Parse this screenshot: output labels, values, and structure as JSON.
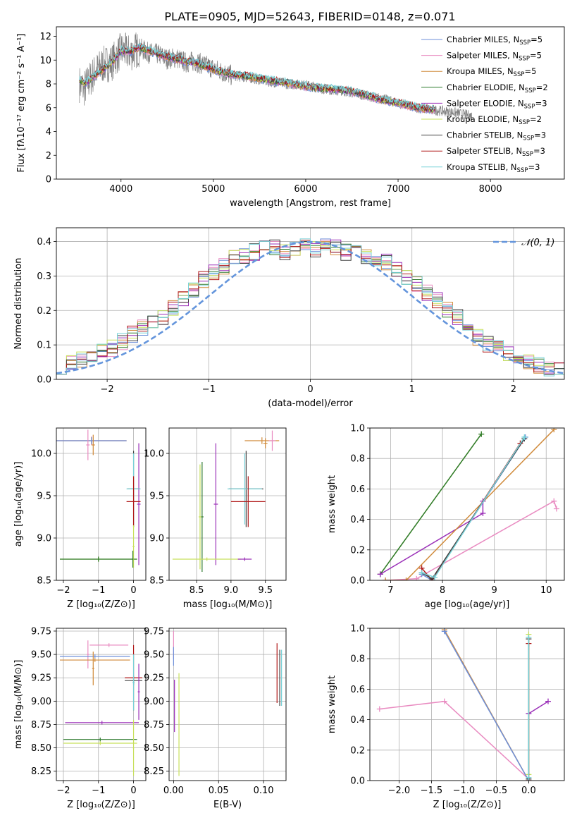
{
  "figure": {
    "title": "PLATE=0905, MJD=52643, FIBERID=0148, z=0.071"
  },
  "colors": {
    "Chabrier MILES": "#6c8fd9",
    "Salpeter MILES": "#e98bc1",
    "Kroupa MILES": "#d08a3a",
    "Chabrier ELODIE": "#2e7a2e",
    "Salpeter ELODIE": "#9b30b8",
    "Kroupa ELODIE": "#c8e05c",
    "Chabrier STELIB": "#404040",
    "Salpeter STELIB": "#b01818",
    "Kroupa STELIB": "#78d2d8",
    "data": "#808080",
    "normal": "#6495dc",
    "grid": "#b0b0b0"
  },
  "chart_data": [
    {
      "id": "spectrum",
      "type": "line",
      "xlabel": "wavelength [Angstrom, rest frame]",
      "ylabel": "Flux [fλ10⁻¹⁷ erg cm⁻² s⁻¹ A⁻¹]",
      "xlim": [
        3300,
        8800
      ],
      "ylim": [
        0,
        12.8
      ],
      "xticks": [
        4000,
        5000,
        6000,
        7000,
        8000
      ],
      "yticks": [
        0,
        2,
        4,
        6,
        8,
        10,
        12
      ],
      "grid": false,
      "legend_position": "top-right",
      "data_series": {
        "x": [
          3550,
          3600,
          3700,
          3800,
          3900,
          4000,
          4100,
          4200,
          4300,
          4400,
          4500,
          4600,
          4700,
          4800,
          4900,
          5000,
          5200,
          5400,
          5600,
          5800,
          6000,
          6200,
          6400,
          6600,
          6800,
          7000,
          7200,
          7400,
          7600,
          7800
        ],
        "y": [
          8.0,
          7.6,
          8.8,
          9.6,
          9.8,
          10.8,
          10.6,
          11.0,
          10.6,
          10.5,
          10.1,
          10.2,
          9.8,
          9.9,
          9.6,
          9.3,
          8.7,
          8.5,
          8.2,
          8.0,
          7.9,
          7.6,
          7.4,
          7.1,
          6.8,
          6.4,
          6.0,
          5.8,
          5.6,
          5.3
        ]
      },
      "model": {
        "x": [
          3550,
          3600,
          3700,
          3800,
          3900,
          4000,
          4100,
          4200,
          4300,
          4400,
          4500,
          4600,
          4700,
          4800,
          4900,
          5000,
          5200,
          5400,
          5600,
          5800,
          6000,
          6200,
          6400,
          6600,
          6800,
          7000,
          7200,
          7400
        ],
        "y": [
          8.4,
          8.0,
          8.6,
          9.2,
          9.8,
          10.8,
          10.7,
          11.1,
          10.8,
          10.5,
          10.3,
          10.1,
          9.9,
          9.8,
          9.5,
          9.2,
          8.8,
          8.6,
          8.3,
          8.1,
          7.8,
          7.6,
          7.5,
          7.2,
          6.7,
          6.4,
          6.0,
          5.8
        ]
      },
      "legend": [
        {
          "text": "Chabrier MILES, N",
          "sub": "SSP",
          "post": "=5",
          "color": "Chabrier MILES"
        },
        {
          "text": "Salpeter MILES, N",
          "sub": "SSP",
          "post": "=5",
          "color": "Salpeter MILES"
        },
        {
          "text": "Kroupa MILES, N",
          "sub": "SSP",
          "post": "=5",
          "color": "Kroupa MILES"
        },
        {
          "text": "Chabrier ELODIE, N",
          "sub": "SSP",
          "post": "=2",
          "color": "Chabrier ELODIE"
        },
        {
          "text": "Salpeter ELODIE, N",
          "sub": "SSP",
          "post": "=3",
          "color": "Salpeter ELODIE"
        },
        {
          "text": "Kroupa ELODIE, N",
          "sub": "SSP",
          "post": "=2",
          "color": "Kroupa ELODIE"
        },
        {
          "text": "Chabrier STELIB, N",
          "sub": "SSP",
          "post": "=3",
          "color": "Chabrier STELIB"
        },
        {
          "text": "Salpeter STELIB, N",
          "sub": "SSP",
          "post": "=3",
          "color": "Salpeter STELIB"
        },
        {
          "text": "Kroupa STELIB, N",
          "sub": "SSP",
          "post": "=3",
          "color": "Kroupa STELIB"
        }
      ]
    },
    {
      "id": "residuals",
      "type": "line",
      "xlabel": "(data-model)/error",
      "ylabel": "Normed distribution",
      "xlim": [
        -2.5,
        2.5
      ],
      "ylim": [
        0,
        0.44
      ],
      "xticks": [
        -2,
        -1,
        0,
        1,
        2
      ],
      "yticks": [
        0.0,
        0.1,
        0.2,
        0.3,
        0.4
      ],
      "grid": true,
      "legend_position": "top-right",
      "legend_text": "𝒩(0, 1)",
      "bin_edges_start": -2.5,
      "bin_width": 0.1,
      "hist_base": [
        0.04,
        0.05,
        0.06,
        0.07,
        0.08,
        0.09,
        0.11,
        0.13,
        0.15,
        0.16,
        0.18,
        0.21,
        0.23,
        0.26,
        0.29,
        0.31,
        0.33,
        0.35,
        0.36,
        0.37,
        0.38,
        0.38,
        0.37,
        0.38,
        0.39,
        0.38,
        0.39,
        0.38,
        0.37,
        0.37,
        0.36,
        0.35,
        0.34,
        0.32,
        0.3,
        0.28,
        0.25,
        0.23,
        0.2,
        0.18,
        0.15,
        0.12,
        0.1,
        0.09,
        0.07,
        0.06,
        0.05,
        0.04,
        0.03,
        0.03
      ]
    },
    {
      "id": "age-vs-z",
      "type": "scatter",
      "xlabel": "Z [log₁₀(Z/Z⊙)]",
      "ylabel": "age  [log₁₀(age/yr)]",
      "xlim": [
        -2.2,
        0.35
      ],
      "ylim": [
        8.5,
        10.3
      ],
      "xticks": [
        -2,
        -1,
        0
      ],
      "yticks": [
        8.5,
        9.0,
        9.5,
        10.0
      ],
      "grid": true,
      "points": [
        {
          "c": "Salpeter MILES",
          "x": -1.2,
          "y": 10.15,
          "ex": 1.0,
          "ey": 0.05
        },
        {
          "c": "Kroupa MILES",
          "x": -1.2,
          "y": 10.15,
          "ex": 1.0,
          "ey": 0.04
        },
        {
          "c": "Chabrier MILES",
          "x": -1.2,
          "y": 10.15,
          "ex": 1.0,
          "ey": 0.04
        },
        {
          "c": "Salpeter MILES",
          "x": -1.3,
          "y": 10.1,
          "ex": 0.05,
          "ey": 0.18
        },
        {
          "c": "Kroupa MILES",
          "x": -1.15,
          "y": 10.1,
          "ex": 0.05,
          "ey": 0.12
        },
        {
          "c": "Salpeter ELODIE",
          "x": 0.15,
          "y": 9.4,
          "ex": 0.05,
          "ey": 0.72
        },
        {
          "c": "Chabrier STELIB",
          "x": 0.0,
          "y": 9.58,
          "ex": 0.18,
          "ey": 0.45
        },
        {
          "c": "Kroupa STELIB",
          "x": 0.0,
          "y": 9.58,
          "ex": 0.2,
          "ey": 0.42
        },
        {
          "c": "Salpeter STELIB",
          "x": 0.0,
          "y": 9.43,
          "ex": 0.2,
          "ey": 0.3
        },
        {
          "c": "Kroupa ELODIE",
          "x": -1.0,
          "y": 8.75,
          "ex": 1.1,
          "ey": 0.03
        },
        {
          "c": "Chabrier ELODIE",
          "x": -1.0,
          "y": 8.75,
          "ex": 1.1,
          "ey": 0.03
        },
        {
          "c": "Kroupa ELODIE",
          "x": 0.0,
          "y": 8.9,
          "ex": 0.03,
          "ey": 0.25
        },
        {
          "c": "Chabrier ELODIE",
          "x": -0.02,
          "y": 8.75,
          "ex": 0.02,
          "ey": 0.1
        }
      ]
    },
    {
      "id": "age-vs-mass",
      "type": "scatter",
      "xlabel": "mass [log₁₀(M/M⊙)]",
      "ylabel": "",
      "xlim": [
        8.1,
        9.8
      ],
      "ylim": [
        8.5,
        10.3
      ],
      "xticks": [
        8.5,
        9.0,
        9.5
      ],
      "yticks": [
        8.5,
        9.0,
        9.5,
        10.0
      ],
      "grid": true,
      "points": [
        {
          "c": "Kroupa MILES",
          "x": 9.45,
          "y": 10.15,
          "ex": 0.25,
          "ey": 0.04
        },
        {
          "c": "Salpeter MILES",
          "x": 9.6,
          "y": 10.15,
          "ex": 0.05,
          "ey": 0.12
        },
        {
          "c": "Kroupa MILES",
          "x": 9.5,
          "y": 10.12,
          "ex": 0.03,
          "ey": 0.06
        },
        {
          "c": "Salpeter ELODIE",
          "x": 8.78,
          "y": 9.4,
          "ex": 0.03,
          "ey": 0.72
        },
        {
          "c": "Chabrier STELIB",
          "x": 9.22,
          "y": 9.58,
          "ex": 0.25,
          "ey": 0.45
        },
        {
          "c": "Kroupa STELIB",
          "x": 9.2,
          "y": 9.58,
          "ex": 0.25,
          "ey": 0.42
        },
        {
          "c": "Salpeter STELIB",
          "x": 9.25,
          "y": 9.43,
          "ex": 0.25,
          "ey": 0.3
        },
        {
          "c": "Chabrier ELODIE",
          "x": 8.58,
          "y": 9.25,
          "ex": 0.02,
          "ey": 0.65
        },
        {
          "c": "Kroupa ELODIE",
          "x": 8.55,
          "y": 9.25,
          "ex": 0.02,
          "ey": 0.62
        },
        {
          "c": "Kroupa ELODIE",
          "x": 8.65,
          "y": 8.75,
          "ex": 0.5,
          "ey": 0.02
        },
        {
          "c": "Salpeter ELODIE",
          "x": 9.2,
          "y": 8.75,
          "ex": 0.1,
          "ey": 0.02
        }
      ]
    },
    {
      "id": "weight-vs-age",
      "type": "line",
      "xlabel": "age  [log₁₀(age/yr)]",
      "ylabel": "mass weight",
      "xlim": [
        6.6,
        10.35
      ],
      "ylim": [
        0,
        1
      ],
      "xticks": [
        7,
        8,
        9,
        10
      ],
      "yticks": [
        0.0,
        0.2,
        0.4,
        0.6,
        0.8,
        1.0
      ],
      "grid": true,
      "lines": [
        {
          "c": "Kroupa ELODIE",
          "x": [
            6.8,
            8.75
          ],
          "y": [
            0.04,
            0.96
          ]
        },
        {
          "c": "Chabrier ELODIE",
          "x": [
            6.8,
            8.75
          ],
          "y": [
            0.04,
            0.96
          ]
        },
        {
          "c": "Salpeter ELODIE",
          "x": [
            6.8,
            8.78,
            8.78
          ],
          "y": [
            0.04,
            0.44,
            0.52
          ]
        },
        {
          "c": "Salpeter MILES",
          "x": [
            6.9,
            7.5,
            10.15,
            10.2
          ],
          "y": [
            0.0,
            0.01,
            0.52,
            0.47
          ]
        },
        {
          "c": "Kroupa MILES",
          "x": [
            6.9,
            7.3,
            10.15
          ],
          "y": [
            0.0,
            0.0,
            0.99
          ]
        },
        {
          "c": "Chabrier MILES",
          "x": [
            7.6,
            7.8,
            9.6
          ],
          "y": [
            0.04,
            0.0,
            0.94
          ]
        },
        {
          "c": "Salpeter STELIB",
          "x": [
            7.6,
            7.8,
            9.5
          ],
          "y": [
            0.08,
            0.0,
            0.9
          ]
        },
        {
          "c": "Chabrier STELIB",
          "x": [
            7.6,
            7.8,
            9.58
          ],
          "y": [
            0.05,
            0.01,
            0.93
          ]
        },
        {
          "c": "Kroupa STELIB",
          "x": [
            7.6,
            7.85,
            9.58
          ],
          "y": [
            0.05,
            0.02,
            0.94
          ]
        }
      ]
    },
    {
      "id": "mass-vs-z",
      "type": "scatter",
      "xlabel": "Z [log₁₀(Z/Z⊙)]",
      "ylabel": "mass [log₁₀(M/M⊙)]",
      "xlim": [
        -2.2,
        0.35
      ],
      "ylim": [
        8.15,
        9.78
      ],
      "xticks": [
        -2,
        -1,
        0
      ],
      "yticks": [
        8.25,
        8.5,
        8.75,
        9.0,
        9.25,
        9.5,
        9.75
      ],
      "grid": true,
      "points": [
        {
          "c": "Salpeter MILES",
          "x": -0.7,
          "y": 9.6,
          "ex": 0.55,
          "ey": 0.02
        },
        {
          "c": "Salpeter MILES",
          "x": -1.3,
          "y": 9.5,
          "ex": 0.03,
          "ey": 0.15
        },
        {
          "c": "Chabrier MILES",
          "x": -1.1,
          "y": 9.48,
          "ex": 1.0,
          "ey": 0.02
        },
        {
          "c": "Kroupa MILES",
          "x": -1.1,
          "y": 9.44,
          "ex": 1.0,
          "ey": 0.02
        },
        {
          "c": "Kroupa MILES",
          "x": -1.15,
          "y": 9.35,
          "ex": 0.03,
          "ey": 0.18
        },
        {
          "c": "Salpeter STELIB",
          "x": 0.0,
          "y": 9.25,
          "ex": 0.25,
          "ey": 0.35
        },
        {
          "c": "Chabrier STELIB",
          "x": 0.0,
          "y": 9.22,
          "ex": 0.25,
          "ey": 0.05
        },
        {
          "c": "Kroupa STELIB",
          "x": 0.0,
          "y": 9.2,
          "ex": 0.03,
          "ey": 0.3
        },
        {
          "c": "Salpeter ELODIE",
          "x": 0.15,
          "y": 9.1,
          "ex": 0.03,
          "ey": 0.3
        },
        {
          "c": "Salpeter ELODIE",
          "x": -0.9,
          "y": 8.77,
          "ex": 1.05,
          "ey": 0.02
        },
        {
          "c": "Chabrier ELODIE",
          "x": -0.95,
          "y": 8.59,
          "ex": 1.05,
          "ey": 0.02
        },
        {
          "c": "Kroupa ELODIE",
          "x": -0.95,
          "y": 8.55,
          "ex": 1.05,
          "ey": 0.02
        },
        {
          "c": "Kroupa ELODIE",
          "x": 0.0,
          "y": 8.5,
          "ex": 0.02,
          "ey": 0.3
        }
      ]
    },
    {
      "id": "mass-vs-ebv",
      "type": "scatter",
      "xlabel": "E(B-V)",
      "ylabel": "",
      "xlim": [
        -0.005,
        0.125
      ],
      "ylim": [
        8.15,
        9.78
      ],
      "xticks": [
        0.0,
        0.05,
        0.1
      ],
      "yticks": [
        8.25,
        8.5,
        8.75,
        9.0,
        9.25,
        9.5,
        9.75
      ],
      "grid": true,
      "points": [
        {
          "c": "Salpeter MILES",
          "x": 0.0,
          "y": 9.6,
          "ex": 0.0,
          "ey": 0.15
        },
        {
          "c": "Chabrier MILES",
          "x": 0.0,
          "y": 9.48,
          "ex": 0.0,
          "ey": 0.1
        },
        {
          "c": "Salpeter ELODIE",
          "x": 0.001,
          "y": 8.95,
          "ex": 0.0,
          "ey": 0.28
        },
        {
          "c": "Kroupa ELODIE",
          "x": 0.006,
          "y": 8.75,
          "ex": 0.0,
          "ey": 0.55
        },
        {
          "c": "Salpeter STELIB",
          "x": 0.115,
          "y": 9.3,
          "ex": 0.0,
          "ey": 0.32
        },
        {
          "c": "Chabrier STELIB",
          "x": 0.118,
          "y": 9.25,
          "ex": 0.0,
          "ey": 0.3
        },
        {
          "c": "Kroupa STELIB",
          "x": 0.12,
          "y": 9.25,
          "ex": 0.0,
          "ey": 0.3
        }
      ]
    },
    {
      "id": "weight-vs-z",
      "type": "line",
      "xlabel": "Z [log₁₀(Z/Z⊙)]",
      "ylabel": "mass weight",
      "xlim": [
        -2.45,
        0.55
      ],
      "ylim": [
        0,
        1
      ],
      "xticks": [
        -2.0,
        -1.5,
        -1.0,
        -0.5,
        0.0
      ],
      "yticks": [
        0.0,
        0.2,
        0.4,
        0.6,
        0.8,
        1.0
      ],
      "grid": true,
      "lines": [
        {
          "c": "Salpeter MILES",
          "x": [
            -2.3,
            -1.3,
            0.0
          ],
          "y": [
            0.47,
            0.52,
            0.01
          ]
        },
        {
          "c": "Kroupa MILES",
          "x": [
            -1.3,
            0.0
          ],
          "y": [
            0.99,
            0.0
          ]
        },
        {
          "c": "Chabrier MILES",
          "x": [
            -1.3,
            0.0
          ],
          "y": [
            0.98,
            0.0
          ]
        },
        {
          "c": "Salpeter ELODIE",
          "x": [
            0.0,
            0.3
          ],
          "y": [
            0.44,
            0.52
          ]
        },
        {
          "c": "Kroupa ELODIE",
          "x": [
            0.0,
            0.0
          ],
          "y": [
            0.04,
            0.96
          ]
        },
        {
          "c": "Salpeter STELIB",
          "x": [
            0.0,
            0.0
          ],
          "y": [
            0.0,
            0.9
          ]
        },
        {
          "c": "Chabrier STELIB",
          "x": [
            0.0,
            0.0
          ],
          "y": [
            0.01,
            0.93
          ]
        },
        {
          "c": "Kroupa STELIB",
          "x": [
            0.0,
            0.0
          ],
          "y": [
            0.02,
            0.94
          ]
        }
      ]
    }
  ]
}
